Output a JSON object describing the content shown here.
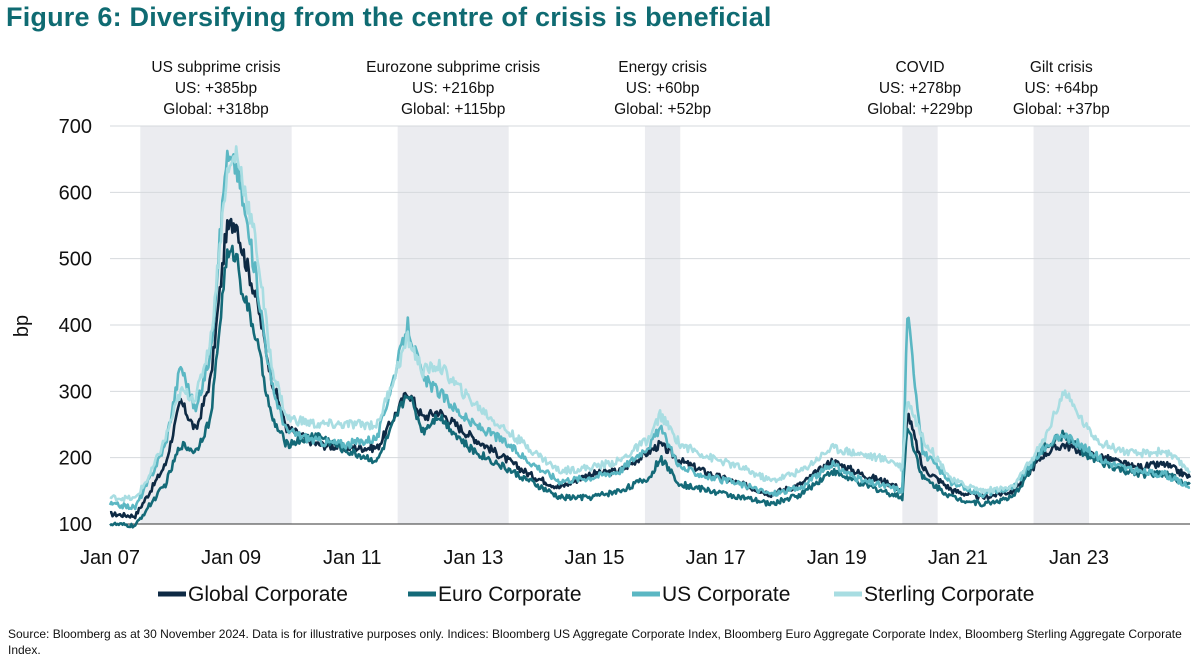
{
  "title": "Figure 6: Diversifying from the centre of crisis is beneficial",
  "source": "Source: Bloomberg as at 30 November 2024. Data is for illustrative purposes only. Indices: Bloomberg US Aggregate Corporate Index, Bloomberg Euro Aggregate Corporate Index, Bloomberg Sterling Aggregate Corporate Index.",
  "chart_data": {
    "type": "line",
    "ylabel": "bp",
    "xlabel": "",
    "ylim": [
      100,
      700
    ],
    "xlim": [
      "2007-01",
      "2024-11"
    ],
    "y_ticks": [
      100,
      200,
      300,
      400,
      500,
      600,
      700
    ],
    "x_ticks": [
      "Jan 07",
      "Jan 09",
      "Jan 11",
      "Jan 13",
      "Jan 15",
      "Jan 17",
      "Jan 19",
      "Jan 21",
      "Jan 23"
    ],
    "grid": "horizontal",
    "legend_position": "bottom",
    "crisis_periods": [
      {
        "label": "US subprime crisis",
        "us": "US: +385bp",
        "global": "Global: +318bp",
        "start": "2007-07",
        "end": "2010-01"
      },
      {
        "label": "Eurozone subprime crisis",
        "us": "US: +216bp",
        "global": "Global: +115bp",
        "start": "2011-10",
        "end": "2013-08"
      },
      {
        "label": "Energy crisis",
        "us": "US: +60bp",
        "global": "Global: +52bp",
        "start": "2015-11",
        "end": "2016-06"
      },
      {
        "label": "COVID",
        "us": "US: +278bp",
        "global": "Global: +229bp",
        "start": "2020-02",
        "end": "2020-09"
      },
      {
        "label": "Gilt crisis",
        "us": "US: +64bp",
        "global": "Global: +37bp",
        "start": "2022-04",
        "end": "2023-03"
      }
    ],
    "series": [
      {
        "name": "Global Corporate",
        "color": "#0e2a44",
        "points": [
          [
            "2007-01",
            115
          ],
          [
            "2007-06",
            112
          ],
          [
            "2007-09",
            150
          ],
          [
            "2007-12",
            190
          ],
          [
            "2008-03",
            285
          ],
          [
            "2008-06",
            240
          ],
          [
            "2008-09",
            320
          ],
          [
            "2008-12",
            540
          ],
          [
            "2009-02",
            560
          ],
          [
            "2009-03",
            520
          ],
          [
            "2009-06",
            440
          ],
          [
            "2009-09",
            320
          ],
          [
            "2009-12",
            245
          ],
          [
            "2010-06",
            220
          ],
          [
            "2010-12",
            215
          ],
          [
            "2011-06",
            215
          ],
          [
            "2011-12",
            300
          ],
          [
            "2012-03",
            260
          ],
          [
            "2012-06",
            270
          ],
          [
            "2012-12",
            235
          ],
          [
            "2013-06",
            205
          ],
          [
            "2013-12",
            175
          ],
          [
            "2014-06",
            155
          ],
          [
            "2014-12",
            175
          ],
          [
            "2015-06",
            180
          ],
          [
            "2015-12",
            210
          ],
          [
            "2016-02",
            220
          ],
          [
            "2016-06",
            195
          ],
          [
            "2016-12",
            175
          ],
          [
            "2017-06",
            160
          ],
          [
            "2017-12",
            145
          ],
          [
            "2018-06",
            160
          ],
          [
            "2018-12",
            195
          ],
          [
            "2019-06",
            175
          ],
          [
            "2019-12,",
            160
          ],
          [
            "2020-02",
            150
          ],
          [
            "2020-03",
            270
          ],
          [
            "2020-06",
            185
          ],
          [
            "2020-12",
            150
          ],
          [
            "2021-06",
            140
          ],
          [
            "2021-12",
            150
          ],
          [
            "2022-06",
            205
          ],
          [
            "2022-10",
            220
          ],
          [
            "2023-03",
            205
          ],
          [
            "2023-06",
            200
          ],
          [
            "2023-12",
            185
          ],
          [
            "2024-06",
            190
          ],
          [
            "2024-11",
            170
          ]
        ]
      },
      {
        "name": "Euro Corporate",
        "color": "#146a78",
        "points": [
          [
            "2007-01",
            100
          ],
          [
            "2007-06",
            97
          ],
          [
            "2007-09",
            130
          ],
          [
            "2007-12",
            160
          ],
          [
            "2008-03",
            220
          ],
          [
            "2008-06",
            210
          ],
          [
            "2008-09",
            260
          ],
          [
            "2008-12",
            500
          ],
          [
            "2009-02",
            510
          ],
          [
            "2009-03",
            460
          ],
          [
            "2009-06",
            380
          ],
          [
            "2009-09",
            260
          ],
          [
            "2009-12",
            220
          ],
          [
            "2010-06",
            235
          ],
          [
            "2010-12",
            210
          ],
          [
            "2011-06",
            195
          ],
          [
            "2011-12",
            300
          ],
          [
            "2012-03",
            240
          ],
          [
            "2012-06",
            265
          ],
          [
            "2012-12",
            215
          ],
          [
            "2013-06",
            190
          ],
          [
            "2013-12",
            165
          ],
          [
            "2014-06",
            140
          ],
          [
            "2014-12",
            140
          ],
          [
            "2015-06",
            150
          ],
          [
            "2015-12",
            170
          ],
          [
            "2016-02",
            200
          ],
          [
            "2016-06",
            160
          ],
          [
            "2016-12",
            150
          ],
          [
            "2017-06",
            140
          ],
          [
            "2017-12",
            130
          ],
          [
            "2018-06",
            145
          ],
          [
            "2018-12",
            180
          ],
          [
            "2019-06",
            160
          ],
          [
            "2019-12",
            145
          ],
          [
            "2020-02",
            140
          ],
          [
            "2020-03",
            250
          ],
          [
            "2020-06",
            170
          ],
          [
            "2020-12",
            140
          ],
          [
            "2021-06",
            130
          ],
          [
            "2021-12",
            140
          ],
          [
            "2022-06",
            215
          ],
          [
            "2022-10",
            235
          ],
          [
            "2023-03",
            200
          ],
          [
            "2023-06",
            190
          ],
          [
            "2023-12",
            175
          ],
          [
            "2024-06",
            175
          ],
          [
            "2024-11",
            160
          ]
        ]
      },
      {
        "name": "US Corporate",
        "color": "#5bb7c3",
        "points": [
          [
            "2007-01",
            130
          ],
          [
            "2007-06",
            125
          ],
          [
            "2007-09",
            170
          ],
          [
            "2007-12",
            220
          ],
          [
            "2008-03",
            340
          ],
          [
            "2008-06",
            270
          ],
          [
            "2008-09",
            360
          ],
          [
            "2008-12",
            650
          ],
          [
            "2009-02",
            640
          ],
          [
            "2009-03",
            600
          ],
          [
            "2009-06",
            470
          ],
          [
            "2009-09",
            310
          ],
          [
            "2009-12",
            240
          ],
          [
            "2010-06",
            225
          ],
          [
            "2010-12",
            220
          ],
          [
            "2011-06",
            230
          ],
          [
            "2011-12",
            400
          ],
          [
            "2012-03",
            320
          ],
          [
            "2012-06",
            300
          ],
          [
            "2012-12",
            255
          ],
          [
            "2013-06",
            230
          ],
          [
            "2013-12",
            195
          ],
          [
            "2014-06",
            165
          ],
          [
            "2014-12",
            170
          ],
          [
            "2015-06",
            180
          ],
          [
            "2015-12",
            220
          ],
          [
            "2016-02",
            245
          ],
          [
            "2016-06",
            185
          ],
          [
            "2016-12",
            170
          ],
          [
            "2017-06",
            160
          ],
          [
            "2017-12",
            145
          ],
          [
            "2018-06",
            155
          ],
          [
            "2018-12",
            190
          ],
          [
            "2019-06",
            165
          ],
          [
            "2019-12",
            155
          ],
          [
            "2020-02",
            150
          ],
          [
            "2020-03",
            420
          ],
          [
            "2020-06",
            210
          ],
          [
            "2020-12",
            160
          ],
          [
            "2021-06",
            145
          ],
          [
            "2021-12",
            155
          ],
          [
            "2022-06",
            215
          ],
          [
            "2022-10",
            235
          ],
          [
            "2023-03",
            210
          ],
          [
            "2023-06",
            195
          ],
          [
            "2023-12",
            180
          ],
          [
            "2024-06",
            175
          ],
          [
            "2024-11",
            155
          ]
        ]
      },
      {
        "name": "Sterling Corporate",
        "color": "#a8dde2",
        "points": [
          [
            "2007-01",
            140
          ],
          [
            "2007-06",
            138
          ],
          [
            "2007-09",
            175
          ],
          [
            "2007-12",
            230
          ],
          [
            "2008-03",
            300
          ],
          [
            "2008-06",
            290
          ],
          [
            "2008-09",
            380
          ],
          [
            "2008-12",
            620
          ],
          [
            "2009-02",
            660
          ],
          [
            "2009-03",
            630
          ],
          [
            "2009-06",
            520
          ],
          [
            "2009-09",
            340
          ],
          [
            "2009-12",
            260
          ],
          [
            "2010-06",
            250
          ],
          [
            "2010-12",
            250
          ],
          [
            "2011-06",
            250
          ],
          [
            "2011-12",
            380
          ],
          [
            "2012-03",
            330
          ],
          [
            "2012-06",
            340
          ],
          [
            "2012-12",
            290
          ],
          [
            "2013-06",
            250
          ],
          [
            "2013-12",
            215
          ],
          [
            "2014-06",
            180
          ],
          [
            "2014-12",
            185
          ],
          [
            "2015-06",
            195
          ],
          [
            "2015-12",
            230
          ],
          [
            "2016-02",
            265
          ],
          [
            "2016-06",
            220
          ],
          [
            "2016-12",
            200
          ],
          [
            "2017-06",
            185
          ],
          [
            "2017-12",
            165
          ],
          [
            "2018-06",
            180
          ],
          [
            "2018-12",
            215
          ],
          [
            "2019-06",
            205
          ],
          [
            "2019-12",
            195
          ],
          [
            "2020-02",
            185
          ],
          [
            "2020-03",
            290
          ],
          [
            "2020-06",
            230
          ],
          [
            "2020-12",
            165
          ],
          [
            "2021-06",
            150
          ],
          [
            "2021-12",
            155
          ],
          [
            "2022-06",
            225
          ],
          [
            "2022-10",
            300
          ],
          [
            "2023-03",
            240
          ],
          [
            "2023-06",
            220
          ],
          [
            "2023-12",
            205
          ],
          [
            "2024-06",
            210
          ],
          [
            "2024-11",
            180
          ]
        ]
      }
    ]
  }
}
